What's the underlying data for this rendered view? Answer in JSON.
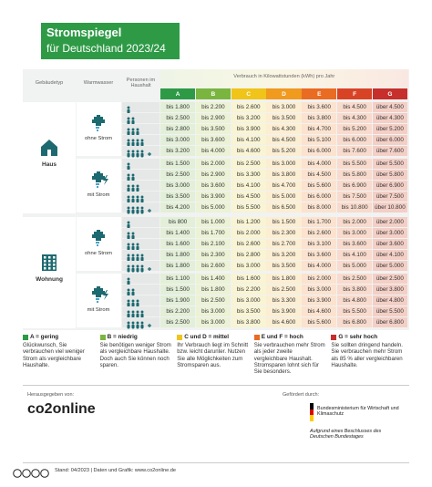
{
  "header": {
    "title": "Stromspiegel",
    "subtitle": "für Deutschland 2023/24"
  },
  "table": {
    "col_building": "Gebäudetyp",
    "col_water": "Warmwasser",
    "col_persons": "Personen im Haushalt",
    "col_consumption": "Verbrauch in Kilowattstunden (kWh) pro Jahr",
    "grades": [
      "A",
      "B",
      "C",
      "D",
      "E",
      "F",
      "G"
    ],
    "groups": [
      {
        "building": "Haus",
        "water_groups": [
          {
            "water": "ohne Strom",
            "rows": [
              [
                "bis 1.800",
                "bis 2.200",
                "bis 2.600",
                "bis 3.000",
                "bis 3.600",
                "bis 4.500",
                "über 4.500"
              ],
              [
                "bis 2.500",
                "bis 2.900",
                "bis 3.200",
                "bis 3.500",
                "bis 3.800",
                "bis 4.300",
                "über 4.300"
              ],
              [
                "bis 2.800",
                "bis 3.500",
                "bis 3.900",
                "bis 4.300",
                "bis 4.700",
                "bis 5.200",
                "über 5.200"
              ],
              [
                "bis 3.000",
                "bis 3.600",
                "bis 4.100",
                "bis 4.500",
                "bis 5.100",
                "bis 6.000",
                "über 6.000"
              ],
              [
                "bis 3.200",
                "bis 4.000",
                "bis 4.600",
                "bis 5.200",
                "bis 6.000",
                "bis 7.600",
                "über 7.600"
              ]
            ]
          },
          {
            "water": "mit Strom",
            "rows": [
              [
                "bis 1.500",
                "bis 2.000",
                "bis 2.500",
                "bis 3.000",
                "bis 4.000",
                "bis 5.500",
                "über 5.500"
              ],
              [
                "bis 2.500",
                "bis 2.900",
                "bis 3.300",
                "bis 3.800",
                "bis 4.500",
                "bis 5.800",
                "über 5.800"
              ],
              [
                "bis 3.000",
                "bis 3.600",
                "bis 4.100",
                "bis 4.700",
                "bis 5.600",
                "bis 6.900",
                "über 6.900"
              ],
              [
                "bis 3.500",
                "bis 3.900",
                "bis 4.500",
                "bis 5.000",
                "bis 6.000",
                "bis 7.500",
                "über 7.500"
              ],
              [
                "bis 4.200",
                "bis 5.000",
                "bis 5.500",
                "bis 6.500",
                "bis 8.000",
                "bis 10.800",
                "über 10.800"
              ]
            ]
          }
        ]
      },
      {
        "building": "Wohnung",
        "water_groups": [
          {
            "water": "ohne Strom",
            "rows": [
              [
                "bis 800",
                "bis 1.000",
                "bis 1.200",
                "bis 1.500",
                "bis 1.700",
                "bis 2.000",
                "über 2.000"
              ],
              [
                "bis 1.400",
                "bis 1.700",
                "bis 2.000",
                "bis 2.300",
                "bis 2.600",
                "bis 3.000",
                "über 3.000"
              ],
              [
                "bis 1.600",
                "bis 2.100",
                "bis 2.600",
                "bis 2.700",
                "bis 3.100",
                "bis 3.600",
                "über 3.600"
              ],
              [
                "bis 1.800",
                "bis 2.300",
                "bis 2.800",
                "bis 3.200",
                "bis 3.600",
                "bis 4.100",
                "über 4.100"
              ],
              [
                "bis 1.800",
                "bis 2.600",
                "bis 3.000",
                "bis 3.500",
                "bis 4.000",
                "bis 5.000",
                "über 5.000"
              ]
            ]
          },
          {
            "water": "mit Strom",
            "rows": [
              [
                "bis 1.100",
                "bis 1.400",
                "bis 1.600",
                "bis 1.800",
                "bis 2.000",
                "bis 2.500",
                "über 2.500"
              ],
              [
                "bis 1.500",
                "bis 1.800",
                "bis 2.200",
                "bis 2.500",
                "bis 3.000",
                "bis 3.800",
                "über 3.800"
              ],
              [
                "bis 1.900",
                "bis 2.500",
                "bis 3.000",
                "bis 3.300",
                "bis 3.900",
                "bis 4.800",
                "über 4.800"
              ],
              [
                "bis 2.200",
                "bis 3.000",
                "bis 3.500",
                "bis 3.900",
                "bis 4.600",
                "bis 5.500",
                "über 5.500"
              ],
              [
                "bis 2.500",
                "bis 3.000",
                "bis 3.800",
                "bis 4.600",
                "bis 5.600",
                "bis 6.800",
                "über 6.800"
              ]
            ]
          }
        ]
      }
    ]
  },
  "legend": [
    {
      "label": "A = gering",
      "text": "Glückwunsch, Sie verbrauchen viel weniger Strom als vergleichbare Haushalte."
    },
    {
      "label": "B = niedrig",
      "text": "Sie benötigen weniger Strom als vergleichbare Haushalte. Doch auch Sie können noch sparen."
    },
    {
      "label": "C und D = mittel",
      "text": "Ihr Verbrauch liegt im Schnitt bzw. leicht darunter. Nutzen Sie alle Möglichkeiten zum Stromsparen aus."
    },
    {
      "label": "E und F = hoch",
      "text": "Sie verbrauchen mehr Strom als jeder zweite vergleichbare Haushalt. Stromsparen lohnt sich für Sie besonders."
    },
    {
      "label": "G = sehr hoch",
      "text": "Sie sollten dringend handeln. Sie verbrauchen mehr Strom als 85 % aller vergleichbaren Haushalte."
    }
  ],
  "footer": {
    "publisher_label": "Herausgegeben von:",
    "publisher": "co2online",
    "sponsor_label": "Gefördert durch:",
    "ministry": "Bundesministerium für Wirtschaft und Klimaschutz",
    "resolution": "Aufgrund eines Beschlusses des Deutschen Bundestages",
    "status": "Stand: 04/2023 | Daten und Grafik: www.co2online.de"
  }
}
